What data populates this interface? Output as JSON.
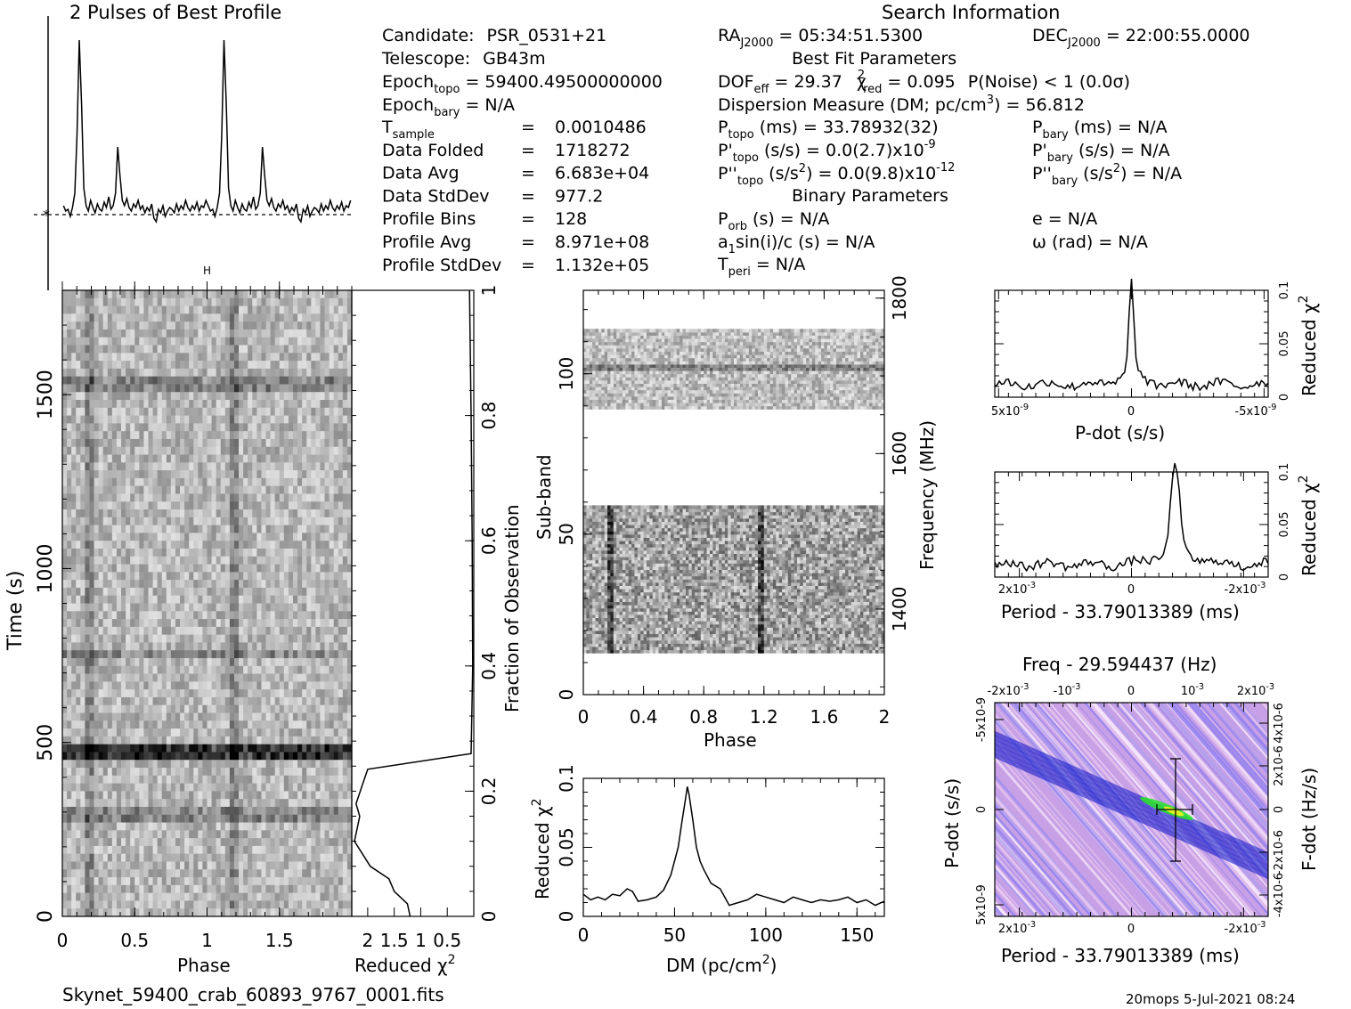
{
  "header": {
    "profile_title": "2 Pulses of Best Profile",
    "search_title": "Search Information",
    "best_fit_title": "Best Fit Parameters",
    "binary_title": "Binary Parameters",
    "candidate_label": "Candidate:",
    "candidate": "PSR_0531+21",
    "telescope_label": "Telescope:",
    "telescope": "GB43m",
    "epoch_topo_label": "Epoch",
    "epoch_topo_sub": "topo",
    "epoch_topo": "= 59400.49500000000",
    "epoch_bary_label": "Epoch",
    "epoch_bary_sub": "bary",
    "epoch_bary": "= N/A",
    "left_rows": [
      {
        "label": "T",
        "sub": "sample",
        "eq": "=",
        "value": "0.0010486"
      },
      {
        "label": "Data Folded",
        "sub": "",
        "eq": "=",
        "value": "1718272"
      },
      {
        "label": "Data Avg",
        "sub": "",
        "eq": "=",
        "value": "6.683e+04"
      },
      {
        "label": "Data StdDev",
        "sub": "",
        "eq": "=",
        "value": "977.2"
      },
      {
        "label": "Profile Bins",
        "sub": "",
        "eq": "=",
        "value": "128"
      },
      {
        "label": "Profile Avg",
        "sub": "",
        "eq": "=",
        "value": "8.971e+08"
      },
      {
        "label": "Profile StdDev",
        "sub": "",
        "eq": "=",
        "value": "1.132e+05"
      }
    ],
    "ra_label": "RA",
    "ra_sub": "J2000",
    "ra": "= 05:34:51.5300",
    "dec_label": "DEC",
    "dec_sub": "J2000",
    "dec": "= 22:00:55.0000",
    "dof_label": "DOF",
    "dof_sub": "eff",
    "dof": "= 29.37",
    "chi_label": "χ",
    "chi_sup": "2",
    "chi_sub": "red",
    "chi": "= 0.095",
    "pnoise": "P(Noise) < 1   (0.0σ)",
    "dm_text": "Dispersion Measure (DM; pc/cm",
    "dm_sup": "3",
    "dm_value": ") = 56.812",
    "ptopo_label": "P",
    "ptopo_sub": "topo",
    "ptopo": "(ms) =  33.78932(32)",
    "pdtopo_label": "P'",
    "pdtopo_sub": "topo",
    "pdtopo": "(s/s) = 0.0(2.7)x10",
    "pdtopo_exp": "-9",
    "pddtopo_label": "P''",
    "pddtopo_sub": "topo",
    "pddtopo": "(s/s",
    "pddtopo_sup": "2",
    "pddtopo_val": ") = 0.0(9.8)x10",
    "pddtopo_exp": "-12",
    "pbary_label": "P",
    "pbary_sub": "bary",
    "pbary": "(ms) = N/A",
    "pdbary_label": "P'",
    "pdbary_sub": "bary",
    "pdbary": "(s/s) = N/A",
    "pddbary_label": "P''",
    "pddbary_sub": "bary",
    "pddbary": "(s/s",
    "pddbary_sup": "2",
    "pddbary_val": ") = N/A",
    "porb_label": "P",
    "porb_sub": "orb",
    "porb": "(s) = N/A",
    "asini": "a",
    "asini_sub": "1",
    "asini_rest": "sin(i)/c (s) = N/A",
    "tperi_label": "T",
    "tperi_sub": "peri",
    "tperi": "= N/A",
    "e_text": "e = N/A",
    "omega_text": "ω (rad) = N/A"
  },
  "footer": {
    "filename": "Skynet_59400_crab_60893_9767_0001.fits",
    "stamp": "20mops   5-Jul-2021 08:24"
  },
  "labels": {
    "phase": "Phase",
    "time": "Time (s)",
    "reduced_chi": "Reduced χ",
    "sq": "2",
    "fraction": "Fraction of Observation",
    "subband": "Sub-band",
    "frequency": "Frequency (MHz)",
    "dm_axis": "DM (pc/cm",
    "dm_axis_end": ")",
    "pdot_axis": "P-dot (s/s)",
    "period_axis": "Period - 33.79013389 (ms)",
    "freq_title": "Freq - 29.594437 (Hz)",
    "fdot_axis": "F-dot (Hz/s)",
    "h_mark": "H",
    "ten": "10",
    "two_ten": "2x10",
    "five_ten": "5x10"
  },
  "colors": {
    "grid_ink": "#000000",
    "ppdot_low": "#ffffff",
    "ppdot_mid": "#c8a0e6",
    "ppdot_high": "#0a14c8",
    "ppdot_peak": "#28e628"
  },
  "chart_data": [
    {
      "id": "profile",
      "type": "line",
      "xlim": [
        0,
        2
      ],
      "values": [
        0.05,
        0.02,
        0.03,
        -0.01,
        0.04,
        0.12,
        0.45,
        0.98,
        0.62,
        0.15,
        0.05,
        0.02,
        0.08,
        0.04,
        0.01,
        0.06,
        0.03,
        0.02,
        0.07,
        0.04,
        0.1,
        0.03,
        0.05,
        0.12,
        0.38,
        0.22,
        0.08,
        0.05,
        0.09,
        0.04,
        0.02,
        0.06,
        0.04,
        0.08,
        0.03,
        0.05,
        0.01,
        0.04,
        0.02,
        0.06,
        -0.02,
        -0.04,
        0.03,
        0.01,
        0.05,
        -0.01,
        0.02,
        0.04,
        0.03,
        0.01,
        0.06,
        0.02,
        0.05,
        0.03,
        0.08,
        0.04,
        0.02,
        0.05,
        0.03,
        0.07,
        0.02,
        0.05,
        0.04,
        0.08,
        0.05,
        0.02,
        0.03,
        -0.01,
        0.04,
        0.12,
        0.45,
        0.98,
        0.62,
        0.15,
        0.05,
        0.02,
        0.08,
        0.04,
        0.01,
        0.06,
        0.03,
        0.02,
        0.07,
        0.04,
        0.1,
        0.03,
        0.05,
        0.12,
        0.38,
        0.22,
        0.08,
        0.05,
        0.09,
        0.04,
        0.02,
        0.06,
        0.04,
        0.08,
        0.03,
        0.05,
        0.01,
        0.04,
        0.02,
        0.06,
        -0.02,
        -0.04,
        0.03,
        0.01,
        0.05,
        -0.01,
        0.02,
        0.04,
        0.03,
        0.01,
        0.06,
        0.02,
        0.05,
        0.03,
        0.08,
        0.04,
        0.02,
        0.05,
        0.03,
        0.07,
        0.02,
        0.05,
        0.04,
        0.08
      ]
    },
    {
      "id": "time_phase",
      "type": "heatmap",
      "xlabel": "Phase",
      "ylabel": "Time (s)",
      "xlim": [
        0,
        2
      ],
      "ylim": [
        0,
        1800
      ],
      "xticks": [
        0,
        0.5,
        1,
        1.5
      ],
      "yticks": [
        0,
        500,
        1000,
        1500
      ],
      "pulse_phases": [
        0.18,
        1.18
      ],
      "dark_rows_s": [
        470,
        290,
        760,
        1530
      ],
      "cmap": "gray_r"
    },
    {
      "id": "time_chi",
      "type": "line",
      "xlabel": "Reduced χ2",
      "ylabel": "Fraction of Observation",
      "xticks": [
        2,
        1.5,
        1,
        0.5
      ],
      "xtick_labels": [
        "2",
        "1.5",
        "1",
        "0.5"
      ],
      "yticks": [
        0,
        0.2,
        0.4,
        0.6,
        0.8,
        1
      ],
      "x": [
        1.2,
        1.25,
        1.5,
        1.6,
        1.95,
        2.1,
        2.25,
        2.2,
        2.15,
        2.22,
        2.1,
        2.0,
        0.05,
        0.02,
        0.03,
        0.05,
        0.08
      ],
      "y": [
        0,
        0.02,
        0.04,
        0.06,
        0.08,
        0.1,
        0.12,
        0.14,
        0.16,
        0.18,
        0.21,
        0.235,
        0.26,
        0.4,
        0.6,
        0.8,
        1.0
      ]
    },
    {
      "id": "subband_phase",
      "type": "heatmap",
      "xlabel": "Phase",
      "ylabel": "Sub-band",
      "y2label": "Frequency (MHz)",
      "xlim": [
        0,
        2
      ],
      "ylim": [
        0,
        126
      ],
      "xticks": [
        0,
        0.4,
        0.8,
        1.2,
        1.6,
        2
      ],
      "yticks": [
        0,
        50,
        100
      ],
      "y2ticks": [
        1400,
        1600,
        1800
      ],
      "bands": [
        [
          13,
          59
        ],
        [
          89,
          114
        ]
      ],
      "pulse_phases": [
        0.18,
        1.18
      ],
      "dark_subband": 101
    },
    {
      "id": "dm_chi",
      "type": "line",
      "xlabel": "DM (pc/cm3)",
      "ylabel": "Reduced χ2",
      "xlim": [
        0,
        165
      ],
      "ylim": [
        0,
        0.1
      ],
      "xticks": [
        0,
        50,
        100,
        150
      ],
      "yticks": [
        0,
        0.05,
        0.1
      ],
      "x": [
        0,
        4,
        8,
        12,
        16,
        20,
        24,
        27,
        30,
        35,
        40,
        44,
        48,
        52,
        54,
        56,
        57,
        58,
        60,
        62,
        64,
        66,
        70,
        75,
        80,
        85,
        90,
        95,
        100,
        105,
        110,
        115,
        120,
        125,
        130,
        135,
        140,
        145,
        150,
        155,
        160,
        165
      ],
      "y": [
        0.016,
        0.012,
        0.014,
        0.012,
        0.016,
        0.015,
        0.02,
        0.018,
        0.011,
        0.012,
        0.014,
        0.019,
        0.03,
        0.05,
        0.068,
        0.085,
        0.094,
        0.088,
        0.07,
        0.05,
        0.04,
        0.034,
        0.024,
        0.02,
        0.008,
        0.01,
        0.012,
        0.016,
        0.014,
        0.012,
        0.01,
        0.014,
        0.012,
        0.01,
        0.012,
        0.011,
        0.012,
        0.014,
        0.01,
        0.012,
        0.008,
        0.011
      ]
    },
    {
      "id": "pdot_chi",
      "type": "line",
      "xlabel": "P-dot (s/s)",
      "ylabel": "Reduced χ2",
      "xlim": [
        5e-09,
        -5e-09
      ],
      "ylim": [
        0,
        0.1
      ],
      "xtick_labels": [
        "5x10-9",
        "0",
        "-5x10-9"
      ],
      "yticks": [
        0,
        0.05,
        0.1
      ],
      "peak_x": 0,
      "peak_y": 0.098
    },
    {
      "id": "period_chi",
      "type": "line",
      "xlabel": "Period - 33.79013389 (ms)",
      "ylabel": "Reduced χ2",
      "xlim": [
        0.0027,
        -0.003
      ],
      "ylim": [
        0,
        0.1
      ],
      "xtick_labels": [
        "2x10-3",
        "0",
        "-2x10-3"
      ],
      "yticks": [
        0,
        0.05,
        0.1
      ],
      "peak_x": -0.00085,
      "peak_y": 0.098
    },
    {
      "id": "period_pdot",
      "type": "heatmap",
      "title": "Freq - 29.594437 (Hz)",
      "xlabel": "Period - 33.79013389 (ms)",
      "ylabel": "P-dot (s/s)",
      "x2label": "",
      "y2label": "F-dot (Hz/s)",
      "xtick_labels": [
        "2x10-3",
        "0",
        "-2x10-3"
      ],
      "x2tick_labels": [
        "-2x10-3",
        "-10-3",
        "0",
        "10-3",
        "2x10-3"
      ],
      "ytick_labels": [
        "5x10-9",
        "0",
        "-5x10-9"
      ],
      "y2tick_labels": [
        "-4x10-6",
        "-2x10-6",
        "0",
        "2x10-6",
        "4x10-6"
      ],
      "best_period": -0.00085,
      "best_pdot": 0
    }
  ]
}
